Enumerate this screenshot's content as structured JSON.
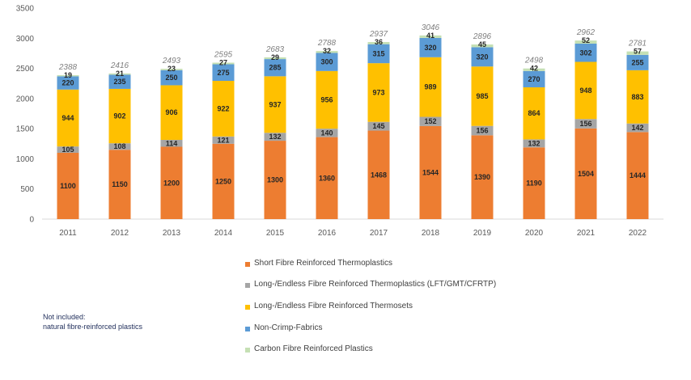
{
  "chart_data": {
    "type": "bar",
    "stacked": true,
    "title": "",
    "xlabel": "",
    "ylabel": "",
    "ylim": [
      0,
      3500
    ],
    "yticks": [
      0,
      500,
      1000,
      1500,
      2000,
      2500,
      3000,
      3500
    ],
    "categories": [
      "2011",
      "2012",
      "2013",
      "2014",
      "2015",
      "2016",
      "2017",
      "2018",
      "2019",
      "2020",
      "2021",
      "2022"
    ],
    "series": [
      {
        "name": "Short Fibre Reinforced Thermoplastics",
        "color": "#ed7d31",
        "values": [
          1100,
          1150,
          1200,
          1250,
          1300,
          1360,
          1468,
          1544,
          1390,
          1190,
          1504,
          1444
        ]
      },
      {
        "name": "Long-/Endless Fibre Reinforced Thermoplastics (LFT/GMT/CFRTP)",
        "color": "#a5a5a5",
        "values": [
          105,
          108,
          114,
          121,
          132,
          140,
          145,
          152,
          156,
          132,
          156,
          142
        ]
      },
      {
        "name": "Long-/Endless Fibre Reinforced Thermosets",
        "color": "#ffc000",
        "values": [
          944,
          902,
          906,
          922,
          937,
          956,
          973,
          989,
          985,
          864,
          948,
          883
        ]
      },
      {
        "name": "Non-Crimp-Fabrics",
        "color": "#5b9bd5",
        "values": [
          220,
          235,
          250,
          275,
          285,
          300,
          315,
          320,
          320,
          270,
          302,
          255
        ]
      },
      {
        "name": "Carbon Fibre Reinforced Plastics",
        "color": "#c5e0b4",
        "values": [
          19,
          21,
          23,
          27,
          29,
          32,
          36,
          41,
          45,
          42,
          52,
          57
        ]
      }
    ],
    "totals": [
      "2388",
      "2416",
      "2493",
      "2595",
      "2683",
      "2788",
      "2937",
      "3046",
      "2896",
      "2498",
      "2962",
      "2781"
    ],
    "legend_position": "bottom"
  },
  "note": {
    "line1": "Not included:",
    "line2": " natural fibre-reinforced plastics"
  }
}
